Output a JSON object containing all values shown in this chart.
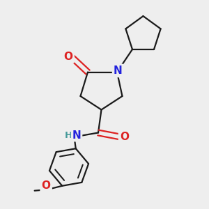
{
  "background_color": "#eeeeee",
  "bond_color": "#1a1a1a",
  "bond_width": 1.6,
  "atom_colors": {
    "N": "#2222dd",
    "O": "#dd2222",
    "H": "#449999",
    "C": "#1a1a1a"
  },
  "font_size_atom": 11,
  "font_size_small": 9.5
}
